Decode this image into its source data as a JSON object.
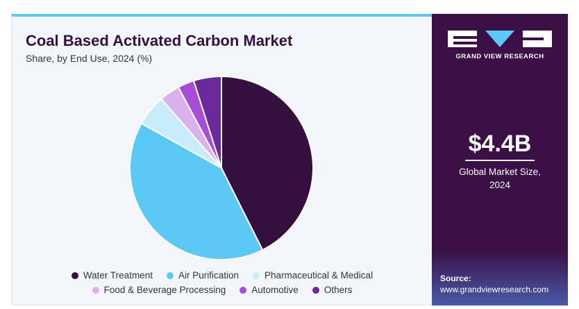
{
  "chart_data": {
    "type": "pie",
    "title": "Coal Based Activated Carbon Market",
    "subtitle": "Share, by End Use, 2024 (%)",
    "categories": [
      "Water Treatment",
      "Air Purification",
      "Pharmaceutical & Medical",
      "Food & Beverage Processing",
      "Automotive",
      "Others"
    ],
    "values": [
      42.6,
      40.5,
      5.5,
      3.6,
      2.9,
      4.9
    ],
    "colors": [
      "#35103f",
      "#5bc8f5",
      "#c8ecfb",
      "#d9b2ec",
      "#a64fd6",
      "#6a2a9a"
    ]
  },
  "sidebar": {
    "brand": "GRAND VIEW RESEARCH",
    "market_size": "$4.4B",
    "market_size_label": "Global Market Size, 2024",
    "source_label": "Source:",
    "source_url": "www.grandviewresearch.com"
  }
}
